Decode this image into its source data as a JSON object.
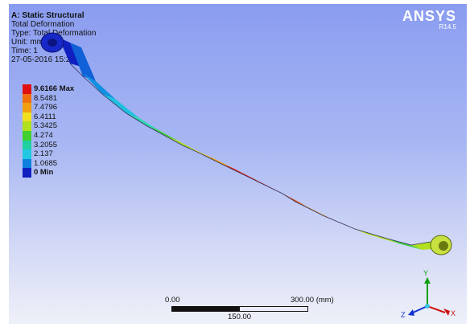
{
  "header": {
    "title": "A: Static Structural",
    "line1": "Total Deformation",
    "line2": "Type: Total Deformation",
    "line3": "Unit: mm",
    "line4": "Time: 1",
    "line5": "27-05-2016 15:26"
  },
  "brand": {
    "logo": "ANSYS",
    "version": "R14.5"
  },
  "legend": {
    "items": [
      {
        "label": "9.6166 Max",
        "color": "#e01010",
        "bold": true
      },
      {
        "label": "8.5481",
        "color": "#f07010",
        "bold": false
      },
      {
        "label": "7.4796",
        "color": "#f0a010",
        "bold": false
      },
      {
        "label": "6.4111",
        "color": "#f0e020",
        "bold": false
      },
      {
        "label": "5.3425",
        "color": "#b0e020",
        "bold": false
      },
      {
        "label": "4.274",
        "color": "#40d030",
        "bold": false
      },
      {
        "label": "3.2055",
        "color": "#20d0a0",
        "bold": false
      },
      {
        "label": "2.137",
        "color": "#20c8e0",
        "bold": false
      },
      {
        "label": "1.0685",
        "color": "#1080e0",
        "bold": false
      },
      {
        "label": "0 Min",
        "color": "#1020c0",
        "bold": true
      }
    ]
  },
  "scale": {
    "left": "0.00",
    "right": "300.00 (mm)",
    "mid": "150.00"
  },
  "triad": {
    "y": "Y",
    "z": "Z",
    "x": "X"
  }
}
